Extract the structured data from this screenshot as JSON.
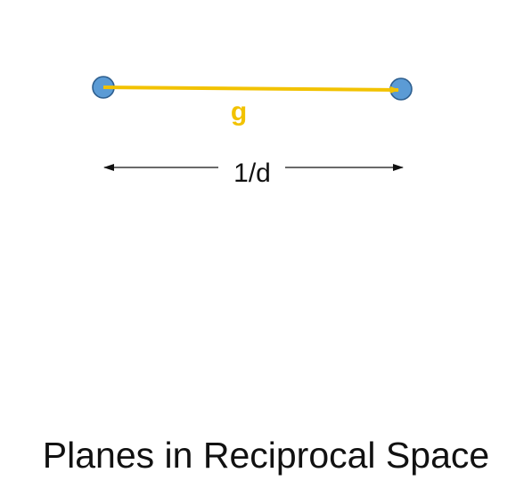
{
  "diagram": {
    "vector_label": "g",
    "distance_label": "1/d",
    "caption": "Planes in Reciprocal Space"
  },
  "colors": {
    "point_fill": "#5b9bd5",
    "point_stroke": "#2e5f8f",
    "vector": "#f2c200",
    "vector_label": "#f2c200",
    "dimension_line": "#111111",
    "text": "#111111"
  }
}
